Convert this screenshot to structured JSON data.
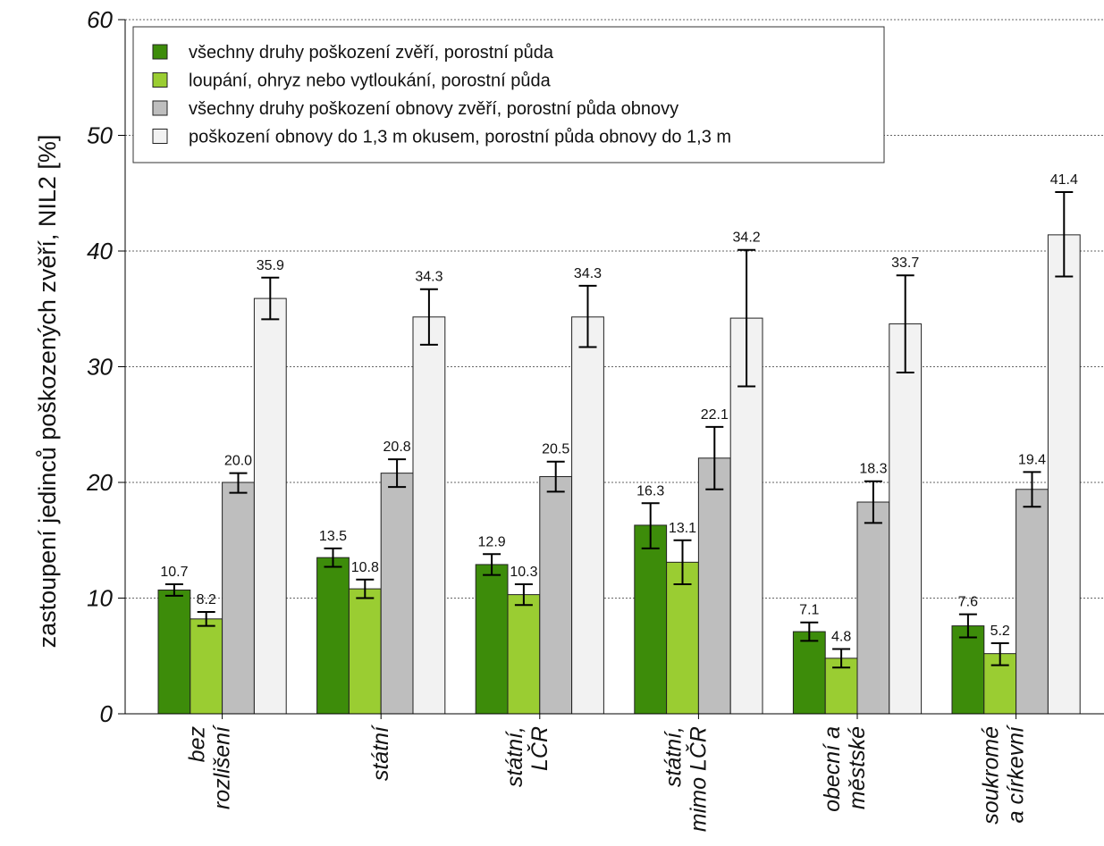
{
  "chart_data": {
    "type": "bar",
    "ylabel": "zastoupení jedinců poškozených zvěří, NIL2 [%]",
    "ylim": [
      0,
      60
    ],
    "yticks": [
      0,
      10,
      20,
      30,
      40,
      50,
      60
    ],
    "grid": true,
    "legend_position": "top-left",
    "categories": [
      [
        "bez",
        "rozlišení"
      ],
      [
        "státní"
      ],
      [
        "státní,",
        "LČR"
      ],
      [
        "státní,",
        "mimo LČR"
      ],
      [
        "obecní a",
        "městské"
      ],
      [
        "soukromé",
        "a církevní"
      ]
    ],
    "series": [
      {
        "name": "všechny druhy poškození zvěří, porostní půda",
        "color": "#3d8c0a",
        "values": [
          10.7,
          13.5,
          12.9,
          16.3,
          7.1,
          7.6
        ],
        "labels": [
          "10.7",
          "13.5",
          "12.9",
          "16.3",
          "7.1",
          "7.6"
        ],
        "err_low": [
          10.2,
          12.7,
          12.0,
          14.3,
          6.3,
          6.6
        ],
        "err_high": [
          11.2,
          14.3,
          13.8,
          18.2,
          7.9,
          8.6
        ]
      },
      {
        "name": "loupání, ohryz nebo vytloukání, porostní půda",
        "color": "#9acd32",
        "values": [
          8.2,
          10.8,
          10.3,
          13.1,
          4.8,
          5.2
        ],
        "labels": [
          "8.2",
          "10.8",
          "10.3",
          "13.1",
          "4.8",
          "5.2"
        ],
        "err_low": [
          7.6,
          10.0,
          9.4,
          11.2,
          4.0,
          4.2
        ],
        "err_high": [
          8.8,
          11.6,
          11.2,
          15.0,
          5.6,
          6.1
        ]
      },
      {
        "name": "všechny druhy poškození obnovy zvěří, porostní půda obnovy",
        "color": "#bebebe",
        "values": [
          20.0,
          20.8,
          20.5,
          22.1,
          18.3,
          19.4
        ],
        "labels": [
          "20.0",
          "20.8",
          "20.5",
          "22.1",
          "18.3",
          "19.4"
        ],
        "err_low": [
          19.1,
          19.6,
          19.2,
          19.4,
          16.5,
          17.9
        ],
        "err_high": [
          20.8,
          22.0,
          21.8,
          24.8,
          20.1,
          20.9
        ]
      },
      {
        "name": "poškození obnovy do 1,3 m okusem, porostní půda obnovy do 1,3 m",
        "color": "#f2f2f2",
        "values": [
          35.9,
          34.3,
          34.3,
          34.2,
          33.7,
          41.4
        ],
        "labels": [
          "35.9",
          "34.3",
          "34.3",
          "34.2",
          "33.7",
          "41.4"
        ],
        "err_low": [
          34.1,
          31.9,
          31.7,
          28.3,
          29.5,
          37.8
        ],
        "err_high": [
          37.7,
          36.7,
          37.0,
          40.1,
          37.9,
          45.1
        ]
      }
    ]
  }
}
